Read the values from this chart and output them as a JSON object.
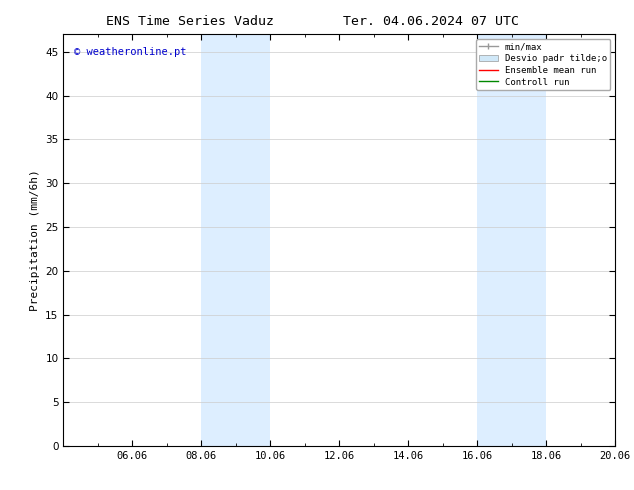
{
  "title_left": "ENS Time Series Vaduz",
  "title_right": "Ter. 04.06.2024 07 UTC",
  "ylabel": "Precipitation (mm/6h)",
  "ylim": [
    0,
    47
  ],
  "yticks": [
    0,
    5,
    10,
    15,
    20,
    25,
    30,
    35,
    40,
    45
  ],
  "xlim": [
    0,
    16
  ],
  "xtick_labels": [
    "06.06",
    "08.06",
    "10.06",
    "12.06",
    "14.06",
    "16.06",
    "18.06",
    "20.06"
  ],
  "xtick_positions": [
    2,
    4,
    6,
    8,
    10,
    12,
    14,
    16
  ],
  "background_color": "#ffffff",
  "plot_bg_color": "#ffffff",
  "shaded_bands": [
    {
      "x_start": 4,
      "x_end": 6,
      "color": "#ddeeff"
    },
    {
      "x_start": 12,
      "x_end": 14,
      "color": "#ddeeff"
    }
  ],
  "watermark_text": "© weatheronline.pt",
  "watermark_color": "#0000cc",
  "watermark_fontsize": 7.5,
  "legend_minmax_color": "#999999",
  "legend_desvio_color": "#d0e8f8",
  "legend_ensemble_color": "#ff0000",
  "legend_control_color": "#008800",
  "title_fontsize": 9.5,
  "axis_label_fontsize": 8,
  "tick_fontsize": 7.5,
  "grid_color": "#cccccc",
  "border_color": "#000000",
  "minor_xtick_count": 1
}
